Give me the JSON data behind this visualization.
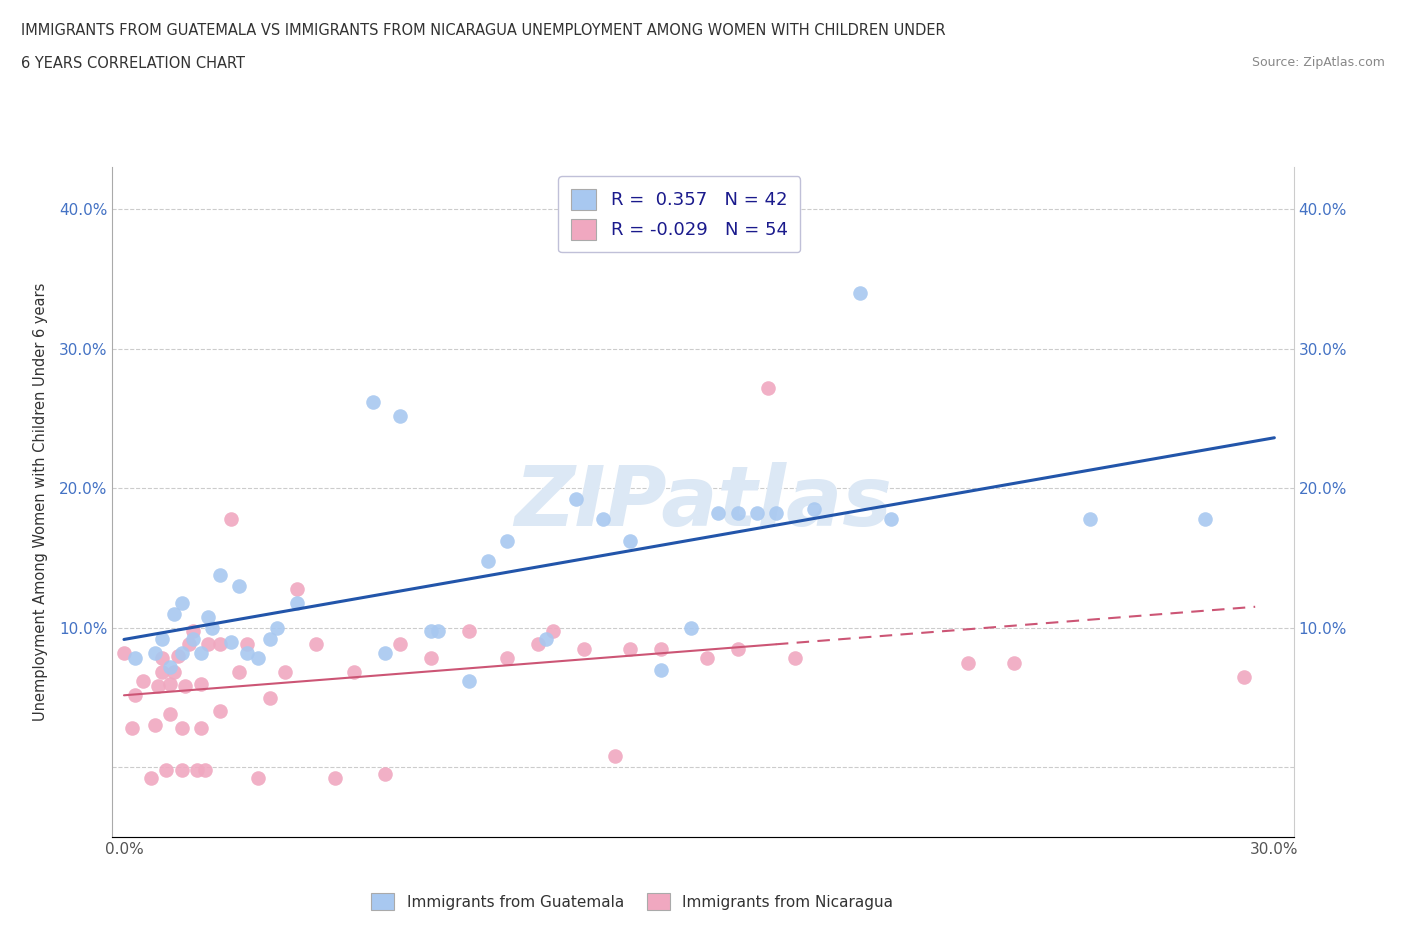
{
  "title_line1": "IMMIGRANTS FROM GUATEMALA VS IMMIGRANTS FROM NICARAGUA UNEMPLOYMENT AMONG WOMEN WITH CHILDREN UNDER",
  "title_line2": "6 YEARS CORRELATION CHART",
  "source": "Source: ZipAtlas.com",
  "ylabel": "Unemployment Among Women with Children Under 6 years",
  "xlim": [
    -0.003,
    0.305
  ],
  "ylim": [
    -0.05,
    0.43
  ],
  "xtick_positions": [
    0.0,
    0.05,
    0.1,
    0.15,
    0.2,
    0.25,
    0.3
  ],
  "xticklabels": [
    "0.0%",
    "",
    "",
    "",
    "",
    "",
    "30.0%"
  ],
  "ytick_positions": [
    0.0,
    0.1,
    0.2,
    0.3,
    0.4
  ],
  "yticklabels": [
    "",
    "10.0%",
    "20.0%",
    "30.0%",
    "40.0%"
  ],
  "R_guatemala": 0.357,
  "N_guatemala": 42,
  "R_nicaragua": -0.029,
  "N_nicaragua": 54,
  "color_guatemala": "#a8c8f0",
  "color_nicaragua": "#f0a8c0",
  "line_color_guatemala": "#2255aa",
  "line_color_nicaragua": "#cc5575",
  "watermark": "ZIPatlas",
  "guatemala_x": [
    0.003,
    0.008,
    0.01,
    0.012,
    0.013,
    0.015,
    0.015,
    0.018,
    0.02,
    0.022,
    0.023,
    0.025,
    0.028,
    0.03,
    0.032,
    0.035,
    0.038,
    0.04,
    0.045,
    0.065,
    0.068,
    0.072,
    0.08,
    0.082,
    0.09,
    0.095,
    0.1,
    0.11,
    0.118,
    0.125,
    0.132,
    0.14,
    0.148,
    0.155,
    0.16,
    0.165,
    0.17,
    0.18,
    0.192,
    0.2,
    0.252,
    0.282
  ],
  "guatemala_y": [
    0.078,
    0.082,
    0.092,
    0.072,
    0.11,
    0.082,
    0.118,
    0.092,
    0.082,
    0.108,
    0.1,
    0.138,
    0.09,
    0.13,
    0.082,
    0.078,
    0.092,
    0.1,
    0.118,
    0.262,
    0.082,
    0.252,
    0.098,
    0.098,
    0.062,
    0.148,
    0.162,
    0.092,
    0.192,
    0.178,
    0.162,
    0.07,
    0.1,
    0.182,
    0.182,
    0.182,
    0.182,
    0.185,
    0.34,
    0.178,
    0.178,
    0.178
  ],
  "nicaragua_x": [
    0.0,
    0.002,
    0.003,
    0.005,
    0.007,
    0.008,
    0.009,
    0.01,
    0.01,
    0.011,
    0.012,
    0.012,
    0.013,
    0.014,
    0.015,
    0.015,
    0.016,
    0.017,
    0.018,
    0.019,
    0.02,
    0.02,
    0.021,
    0.022,
    0.025,
    0.025,
    0.028,
    0.03,
    0.032,
    0.035,
    0.038,
    0.042,
    0.045,
    0.05,
    0.055,
    0.06,
    0.068,
    0.072,
    0.08,
    0.09,
    0.1,
    0.108,
    0.112,
    0.12,
    0.128,
    0.132,
    0.14,
    0.152,
    0.16,
    0.168,
    0.175,
    0.22,
    0.232,
    0.292
  ],
  "nicaragua_y": [
    0.082,
    0.028,
    0.052,
    0.062,
    -0.008,
    0.03,
    0.058,
    0.068,
    0.078,
    -0.002,
    0.038,
    0.06,
    0.068,
    0.08,
    -0.002,
    0.028,
    0.058,
    0.088,
    0.098,
    -0.002,
    0.028,
    0.06,
    -0.002,
    0.088,
    0.04,
    0.088,
    0.178,
    0.068,
    0.088,
    -0.008,
    0.05,
    0.068,
    0.128,
    0.088,
    -0.008,
    0.068,
    -0.005,
    0.088,
    0.078,
    0.098,
    0.078,
    0.088,
    0.098,
    0.085,
    0.008,
    0.085,
    0.085,
    0.078,
    0.085,
    0.272,
    0.078,
    0.075,
    0.075,
    0.065
  ]
}
